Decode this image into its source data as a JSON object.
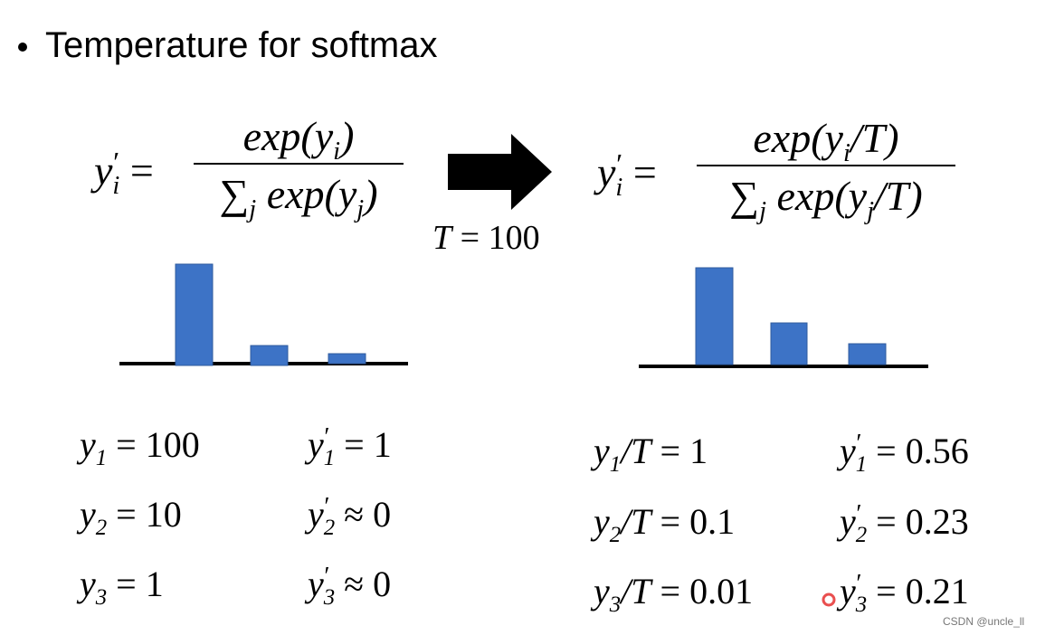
{
  "title": "Temperature for softmax",
  "left_formula": {
    "lhs": [
      {
        "text": "y"
      },
      {
        "sup": "′"
      },
      {
        "sub": "i"
      },
      {
        "up": " ="
      }
    ],
    "numerator": [
      {
        "text": "exp(y"
      },
      {
        "sub": "i"
      },
      {
        "text": ")"
      }
    ],
    "denominator": [
      {
        "up": "∑"
      },
      {
        "sub": "j"
      },
      {
        "text": " exp(y"
      },
      {
        "sub": "j"
      },
      {
        "text": ")"
      }
    ]
  },
  "arrow_label": [
    {
      "text": "T"
    },
    {
      "up": " = 100"
    }
  ],
  "right_formula": {
    "lhs": [
      {
        "text": "y"
      },
      {
        "sup": "′"
      },
      {
        "sub": "i"
      },
      {
        "up": " ="
      }
    ],
    "numerator": [
      {
        "text": "exp(y"
      },
      {
        "sub": "i"
      },
      {
        "text": "/T)"
      }
    ],
    "denominator": [
      {
        "up": "∑"
      },
      {
        "sub": "j"
      },
      {
        "text": " exp(y"
      },
      {
        "sub": "j"
      },
      {
        "text": "/T)"
      }
    ]
  },
  "left_equations": [
    [
      {
        "text": "y"
      },
      {
        "sub": "1"
      },
      {
        "up": " = 100"
      }
    ],
    [
      {
        "text": "y"
      },
      {
        "sub": "2"
      },
      {
        "up": " = 10"
      }
    ],
    [
      {
        "text": "y"
      },
      {
        "sub": "3"
      },
      {
        "up": " = 1"
      }
    ]
  ],
  "left_results": [
    [
      {
        "text": "y"
      },
      {
        "sup": "′"
      },
      {
        "sub": "1"
      },
      {
        "up": " = 1"
      }
    ],
    [
      {
        "text": "y"
      },
      {
        "sup": "′"
      },
      {
        "sub": "2"
      },
      {
        "up": " ≈ 0"
      }
    ],
    [
      {
        "text": "y"
      },
      {
        "sup": "′"
      },
      {
        "sub": "3"
      },
      {
        "up": " ≈ 0"
      }
    ]
  ],
  "right_equations": [
    [
      {
        "text": "y"
      },
      {
        "sub": "1"
      },
      {
        "text": "/T"
      },
      {
        "up": " = 1"
      }
    ],
    [
      {
        "text": "y"
      },
      {
        "sub": "2"
      },
      {
        "text": "/T"
      },
      {
        "up": " = 0.1"
      }
    ],
    [
      {
        "text": "y"
      },
      {
        "sub": "3"
      },
      {
        "text": "/T"
      },
      {
        "up": " = 0.01"
      }
    ]
  ],
  "right_results": [
    [
      {
        "text": "y"
      },
      {
        "sup": "′"
      },
      {
        "sub": "1"
      },
      {
        "up": " = 0.56"
      }
    ],
    [
      {
        "text": "y"
      },
      {
        "sup": "′"
      },
      {
        "sub": "2"
      },
      {
        "up": " = 0.23"
      }
    ],
    [
      {
        "text": "y"
      },
      {
        "sup": "′"
      },
      {
        "sub": "3"
      },
      {
        "up": " = 0.21"
      }
    ]
  ],
  "watermark": "CSDN @uncle_ll"
}
